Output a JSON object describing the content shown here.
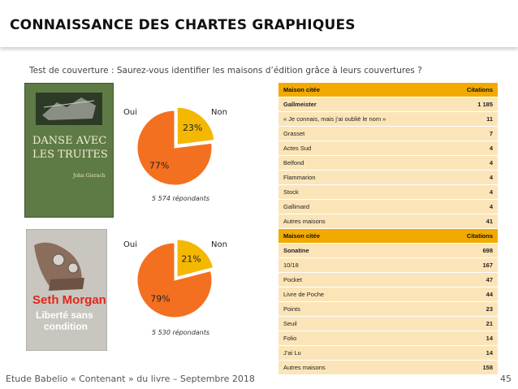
{
  "title": "CONNAISSANCE DES CHARTES GRAPHIQUES",
  "subtitle": "Test de couverture : Saurez-vous identifier les maisons d’édition grâce à leurs couvertures ?",
  "footer": "Etude Babelio « Contenant » du livre  – Septembre 2018",
  "page_number": "45",
  "colors": {
    "oui": "#f5b800",
    "non": "#f37021",
    "table_header": "#f2a900",
    "table_row": "#fbe5b8"
  },
  "books": [
    {
      "cover_title": "DANSE AVEC LES TRUITES",
      "cover_author": "John Gierach"
    },
    {
      "cover_title": "Seth Morgan",
      "cover_subtitle": "Liberté sans condition"
    }
  ],
  "chart_data": [
    {
      "type": "pie",
      "labels": [
        "Oui",
        "Non"
      ],
      "values": [
        23,
        77
      ],
      "value_labels": [
        "23%",
        "77%"
      ],
      "note": "5 574 répondants"
    },
    {
      "type": "pie",
      "labels": [
        "Oui",
        "Non"
      ],
      "values": [
        21,
        79
      ],
      "value_labels": [
        "21%",
        "79%"
      ],
      "note": "5 530 répondants"
    }
  ],
  "tables": [
    {
      "headers": [
        "Maison citée",
        "Citations"
      ],
      "rows": [
        [
          "Gallmeister",
          "1 185"
        ],
        [
          "« Je connais, mais j’ai oublié le nom »",
          "11"
        ],
        [
          "Grasset",
          "7"
        ],
        [
          "Actes Sud",
          "4"
        ],
        [
          "Belfond",
          "4"
        ],
        [
          "Flammarion",
          "4"
        ],
        [
          "Stock",
          "4"
        ],
        [
          "Gallimard",
          "4"
        ],
        [
          "Autres maisons",
          "41"
        ]
      ]
    },
    {
      "headers": [
        "Maison citée",
        "Citations"
      ],
      "rows": [
        [
          "Sonatine",
          "698"
        ],
        [
          "10/18",
          "167"
        ],
        [
          "Pocket",
          "47"
        ],
        [
          "Livre de Poche",
          "44"
        ],
        [
          "Points",
          "23"
        ],
        [
          "Seuil",
          "21"
        ],
        [
          "Folio",
          "14"
        ],
        [
          "J’ai Lu",
          "14"
        ],
        [
          "Autres maisons",
          "158"
        ]
      ]
    }
  ]
}
